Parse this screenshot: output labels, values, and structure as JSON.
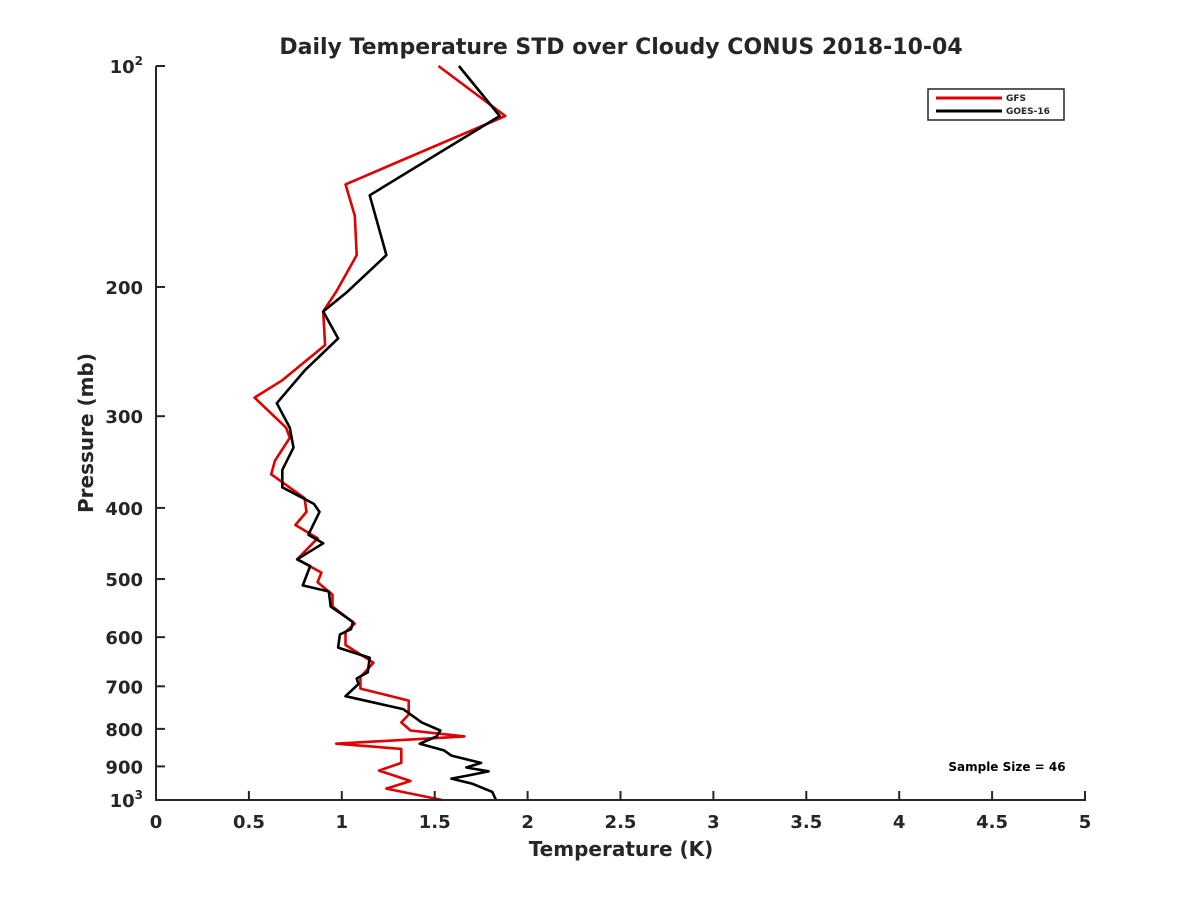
{
  "chart_data": {
    "type": "line",
    "title": "Daily Temperature STD over Cloudy CONUS 2018-10-04",
    "xlabel": "Temperature (K)",
    "ylabel": "Pressure (mb)",
    "xlim": [
      0,
      5
    ],
    "ylim": [
      100,
      1000
    ],
    "y_scale": "log",
    "y_reversed": true,
    "grid": false,
    "legend_position": "top-right",
    "x_ticks": [
      "0",
      "0.5",
      "1",
      "1.5",
      "2",
      "2.5",
      "3",
      "3.5",
      "4",
      "4.5",
      "5"
    ],
    "y_ticks": [
      {
        "value": 100,
        "base": "10",
        "exp": "2"
      },
      {
        "value": 200,
        "label": "200"
      },
      {
        "value": 300,
        "label": "300"
      },
      {
        "value": 400,
        "label": "400"
      },
      {
        "value": 500,
        "label": "500"
      },
      {
        "value": 600,
        "label": "600"
      },
      {
        "value": 700,
        "label": "700"
      },
      {
        "value": 800,
        "label": "800"
      },
      {
        "value": 900,
        "label": "900"
      },
      {
        "value": 1000,
        "base": "10",
        "exp": "3"
      }
    ],
    "annotation": "Sample Size = 46",
    "series": [
      {
        "name": "GFS",
        "color": "#e00000",
        "points": [
          [
            1.52,
            100
          ],
          [
            1.88,
            117
          ],
          [
            1.02,
            145
          ],
          [
            1.07,
            160
          ],
          [
            1.08,
            181
          ],
          [
            0.97,
            203
          ],
          [
            0.9,
            216
          ],
          [
            0.91,
            240
          ],
          [
            0.68,
            268
          ],
          [
            0.53,
            283
          ],
          [
            0.7,
            311
          ],
          [
            0.72,
            321
          ],
          [
            0.64,
            345
          ],
          [
            0.62,
            360
          ],
          [
            0.8,
            388
          ],
          [
            0.81,
            405
          ],
          [
            0.75,
            422
          ],
          [
            0.87,
            440
          ],
          [
            0.76,
            470
          ],
          [
            0.89,
            490
          ],
          [
            0.87,
            505
          ],
          [
            0.95,
            525
          ],
          [
            0.95,
            545
          ],
          [
            1.07,
            575
          ],
          [
            1.02,
            590
          ],
          [
            1.02,
            615
          ],
          [
            1.17,
            650
          ],
          [
            1.1,
            680
          ],
          [
            1.1,
            705
          ],
          [
            1.36,
            732
          ],
          [
            1.36,
            765
          ],
          [
            1.32,
            784
          ],
          [
            1.37,
            804
          ],
          [
            1.66,
            819
          ],
          [
            0.97,
            838
          ],
          [
            1.32,
            852
          ],
          [
            1.32,
            890
          ],
          [
            1.2,
            912
          ],
          [
            1.37,
            942
          ],
          [
            1.24,
            965
          ],
          [
            1.54,
            1000
          ]
        ]
      },
      {
        "name": "GOES-16",
        "color": "#000000",
        "points": [
          [
            1.63,
            100
          ],
          [
            1.85,
            117
          ],
          [
            1.15,
            150
          ],
          [
            1.24,
            181
          ],
          [
            1.03,
            203
          ],
          [
            0.9,
            216
          ],
          [
            0.98,
            235
          ],
          [
            0.8,
            260
          ],
          [
            0.65,
            288
          ],
          [
            0.72,
            311
          ],
          [
            0.74,
            331
          ],
          [
            0.68,
            355
          ],
          [
            0.68,
            375
          ],
          [
            0.85,
            395
          ],
          [
            0.88,
            405
          ],
          [
            0.82,
            435
          ],
          [
            0.9,
            447
          ],
          [
            0.76,
            470
          ],
          [
            0.83,
            480
          ],
          [
            0.79,
            510
          ],
          [
            0.93,
            520
          ],
          [
            0.94,
            545
          ],
          [
            1.06,
            572
          ],
          [
            1.05,
            585
          ],
          [
            0.99,
            595
          ],
          [
            0.98,
            620
          ],
          [
            1.15,
            640
          ],
          [
            1.14,
            670
          ],
          [
            1.08,
            683
          ],
          [
            1.09,
            695
          ],
          [
            1.02,
            722
          ],
          [
            1.33,
            752
          ],
          [
            1.43,
            784
          ],
          [
            1.53,
            804
          ],
          [
            1.51,
            819
          ],
          [
            1.42,
            838
          ],
          [
            1.55,
            856
          ],
          [
            1.59,
            870
          ],
          [
            1.75,
            890
          ],
          [
            1.67,
            903
          ],
          [
            1.79,
            914
          ],
          [
            1.69,
            925
          ],
          [
            1.59,
            935
          ],
          [
            1.7,
            950
          ],
          [
            1.81,
            975
          ],
          [
            1.83,
            1000
          ]
        ]
      }
    ]
  }
}
